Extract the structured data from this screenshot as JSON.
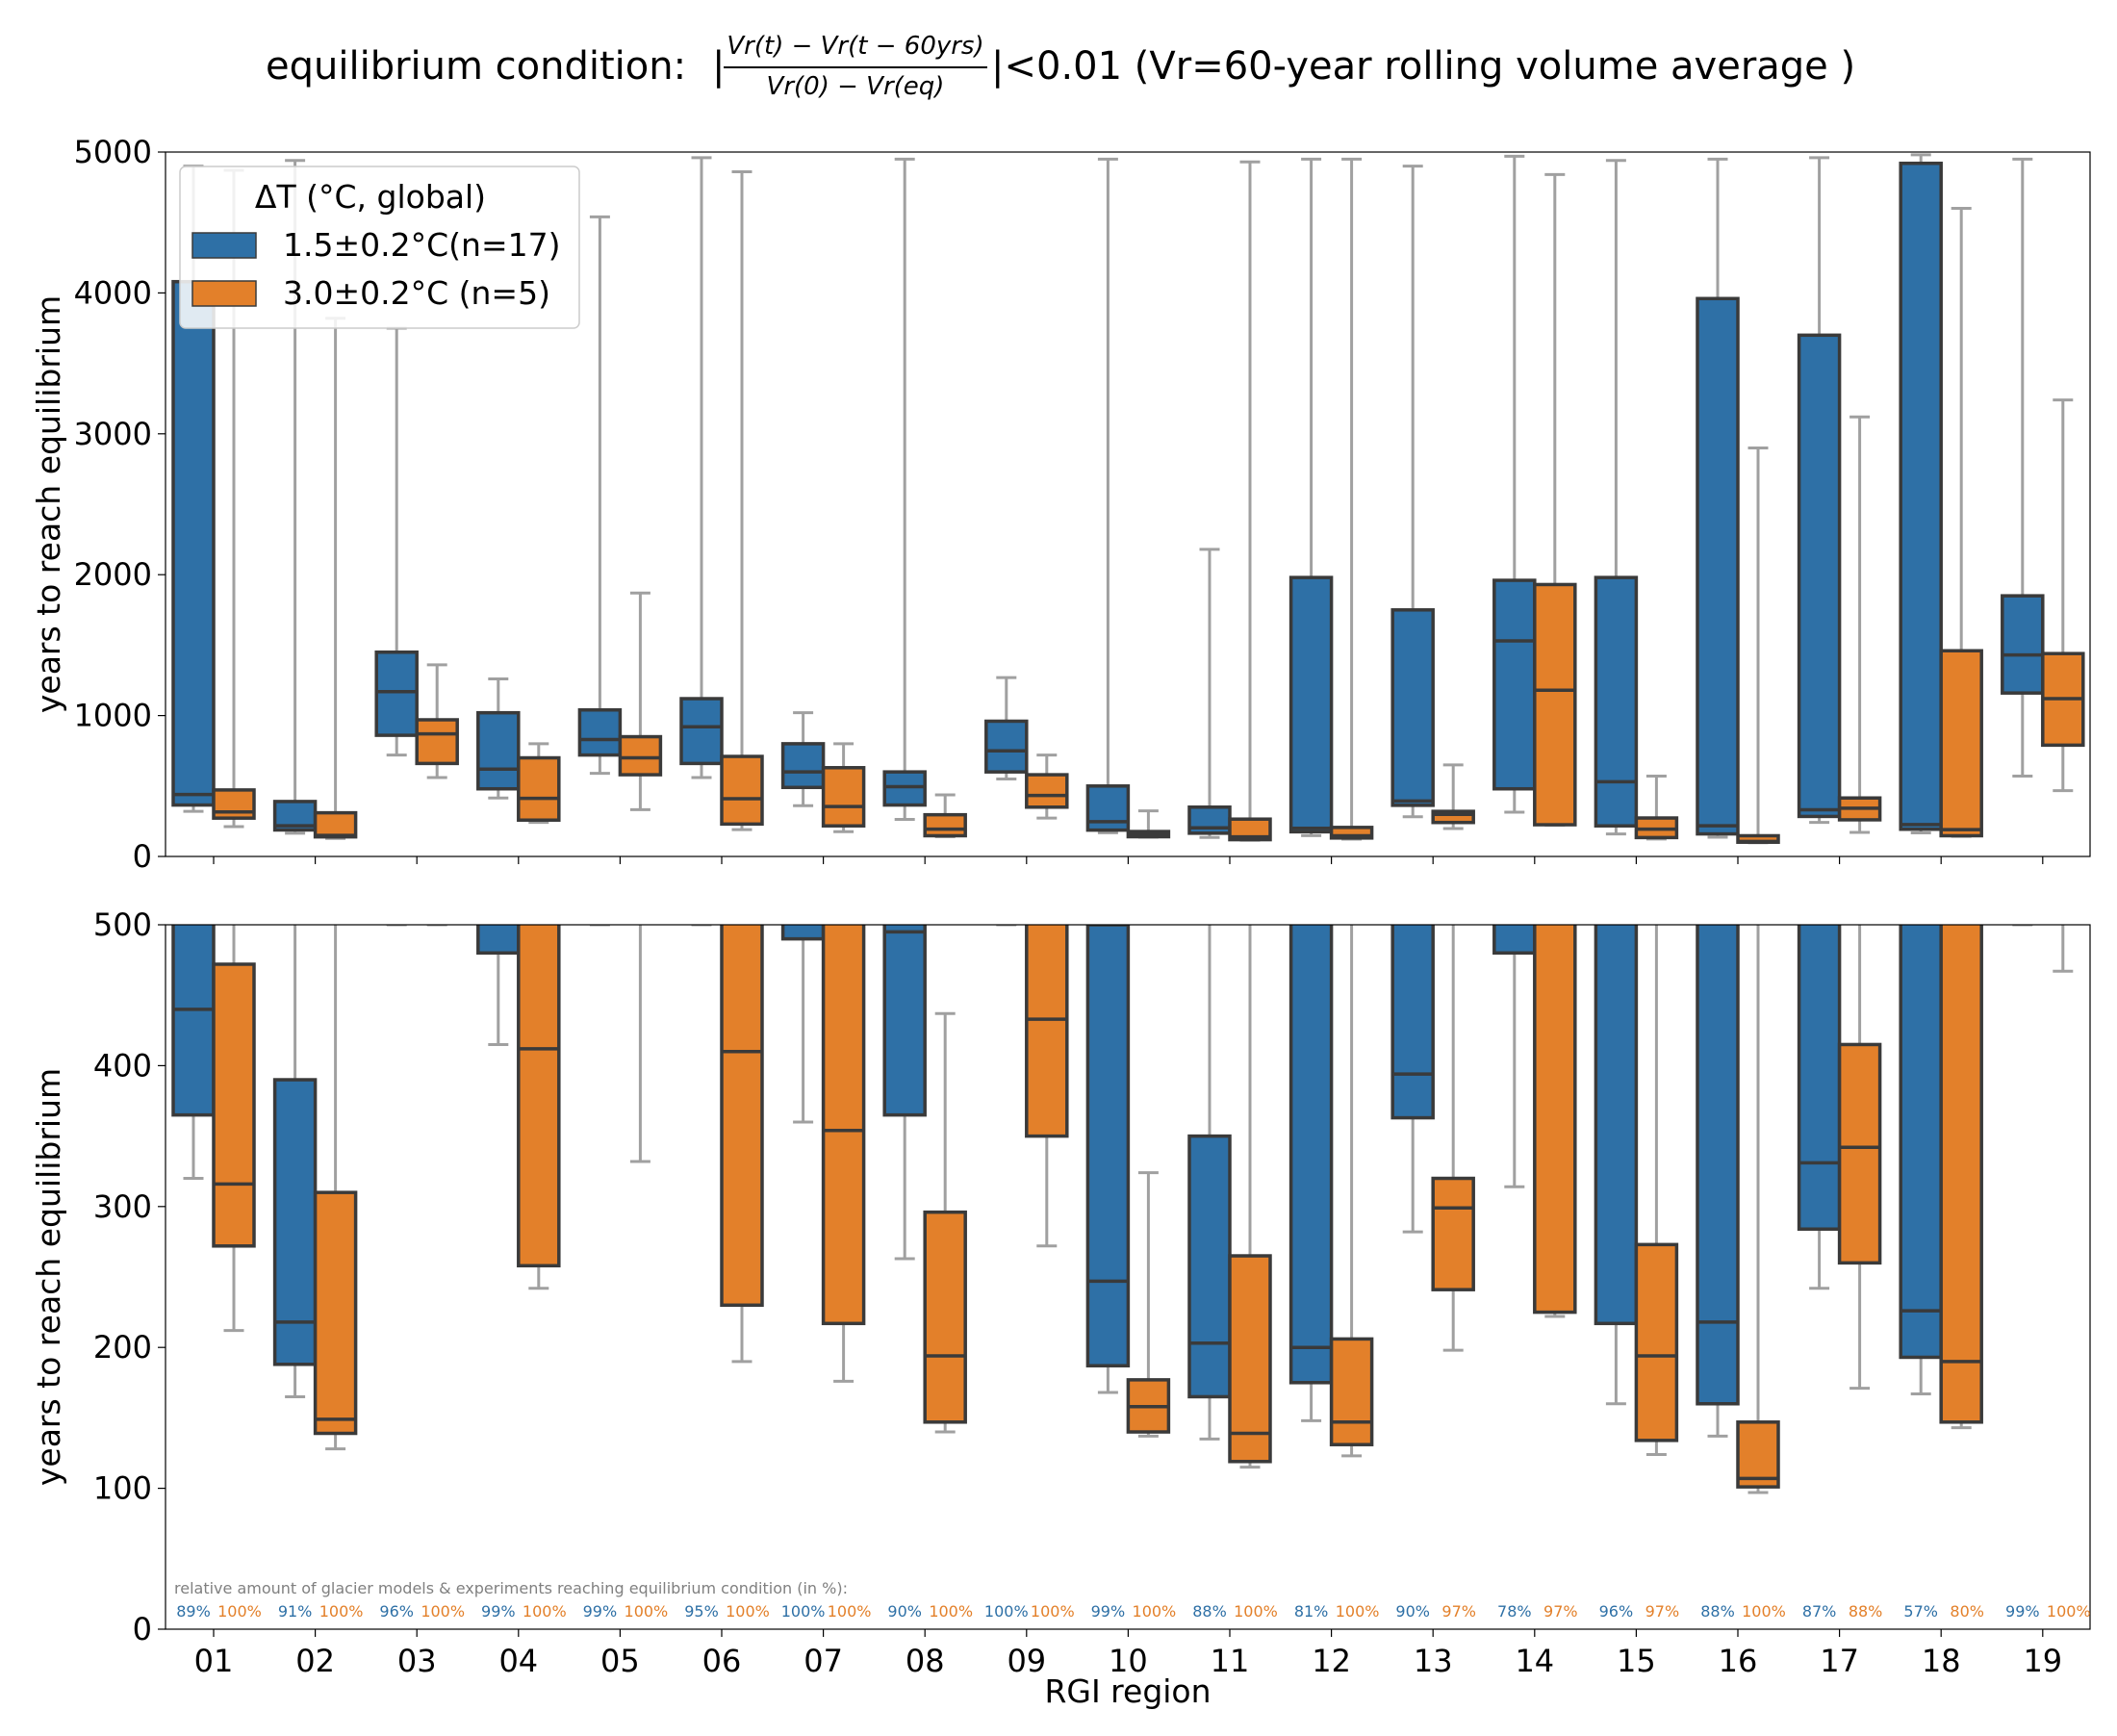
{
  "title": {
    "prefix": "equilibrium condition:",
    "numerator": "Vr(t) − Vr(t − 60yrs)",
    "denominator": "Vr(0) − Vr(eq)",
    "suffix": "<0.01 (Vr=60-year rolling volume average )"
  },
  "colors": {
    "s15": "#2e70a6",
    "s30": "#e3802a",
    "whisker": "#a0a0a0",
    "edge": "#3a3a3a"
  },
  "chart_data": [
    {
      "type": "box",
      "panel": "top",
      "ylabel": "years to reach equilibrium",
      "ylim": [
        0,
        5000
      ],
      "yticks": [
        0,
        1000,
        2000,
        3000,
        4000,
        5000
      ],
      "categories": [
        "01",
        "02",
        "03",
        "04",
        "05",
        "06",
        "07",
        "08",
        "09",
        "10",
        "11",
        "12",
        "13",
        "14",
        "15",
        "16",
        "17",
        "18",
        "19"
      ],
      "legend": {
        "title": "ΔT (°C, global)",
        "position": "upper-left"
      },
      "series": [
        {
          "name": "1.5±0.2°C(n=17)",
          "color": "#2e70a6",
          "boxes": [
            {
              "min": 320,
              "q1": 365,
              "median": 440,
              "q3": 4080,
              "max": 4900
            },
            {
              "min": 165,
              "q1": 188,
              "median": 218,
              "q3": 390,
              "max": 4940
            },
            {
              "min": 720,
              "q1": 860,
              "median": 1170,
              "q3": 1450,
              "max": 3750
            },
            {
              "min": 415,
              "q1": 480,
              "median": 620,
              "q3": 1020,
              "max": 1260
            },
            {
              "min": 590,
              "q1": 720,
              "median": 830,
              "q3": 1040,
              "max": 4540
            },
            {
              "min": 560,
              "q1": 660,
              "median": 920,
              "q3": 1120,
              "max": 4960
            },
            {
              "min": 360,
              "q1": 490,
              "median": 600,
              "q3": 800,
              "max": 1020
            },
            {
              "min": 263,
              "q1": 365,
              "median": 495,
              "q3": 600,
              "max": 4950
            },
            {
              "min": 550,
              "q1": 600,
              "median": 750,
              "q3": 960,
              "max": 1270
            },
            {
              "min": 168,
              "q1": 187,
              "median": 247,
              "q3": 500,
              "max": 4950
            },
            {
              "min": 135,
              "q1": 165,
              "median": 203,
              "q3": 350,
              "max": 2180
            },
            {
              "min": 148,
              "q1": 175,
              "median": 200,
              "q3": 1980,
              "max": 4950
            },
            {
              "min": 282,
              "q1": 363,
              "median": 394,
              "q3": 1750,
              "max": 4900
            },
            {
              "min": 314,
              "q1": 480,
              "median": 1530,
              "q3": 1960,
              "max": 4970
            },
            {
              "min": 160,
              "q1": 217,
              "median": 530,
              "q3": 1980,
              "max": 4940
            },
            {
              "min": 137,
              "q1": 160,
              "median": 218,
              "q3": 3960,
              "max": 4950
            },
            {
              "min": 242,
              "q1": 284,
              "median": 331,
              "q3": 3700,
              "max": 4960
            },
            {
              "min": 167,
              "q1": 193,
              "median": 226,
              "q3": 4920,
              "max": 4980
            },
            {
              "min": 570,
              "q1": 1160,
              "median": 1430,
              "q3": 1850,
              "max": 4950
            }
          ]
        },
        {
          "name": "3.0±0.2°C (n=5)",
          "color": "#e3802a",
          "boxes": [
            {
              "min": 212,
              "q1": 272,
              "median": 316,
              "q3": 472,
              "max": 4870
            },
            {
              "min": 128,
              "q1": 139,
              "median": 149,
              "q3": 310,
              "max": 3820
            },
            {
              "min": 560,
              "q1": 660,
              "median": 870,
              "q3": 970,
              "max": 1360
            },
            {
              "min": 242,
              "q1": 258,
              "median": 412,
              "q3": 700,
              "max": 800
            },
            {
              "min": 332,
              "q1": 580,
              "median": 700,
              "q3": 850,
              "max": 1870
            },
            {
              "min": 190,
              "q1": 230,
              "median": 410,
              "q3": 710,
              "max": 4860
            },
            {
              "min": 176,
              "q1": 217,
              "median": 354,
              "q3": 630,
              "max": 800
            },
            {
              "min": 140,
              "q1": 147,
              "median": 194,
              "q3": 296,
              "max": 437
            },
            {
              "min": 272,
              "q1": 350,
              "median": 433,
              "q3": 580,
              "max": 720
            },
            {
              "min": 137,
              "q1": 140,
              "median": 158,
              "q3": 177,
              "max": 324
            },
            {
              "min": 115,
              "q1": 119,
              "median": 139,
              "q3": 265,
              "max": 4930
            },
            {
              "min": 123,
              "q1": 131,
              "median": 147,
              "q3": 206,
              "max": 4950
            },
            {
              "min": 198,
              "q1": 241,
              "median": 299,
              "q3": 320,
              "max": 650
            },
            {
              "min": 222,
              "q1": 225,
              "median": 1180,
              "q3": 1930,
              "max": 4840
            },
            {
              "min": 124,
              "q1": 134,
              "median": 194,
              "q3": 273,
              "max": 570
            },
            {
              "min": 97,
              "q1": 101,
              "median": 107,
              "q3": 147,
              "max": 2900
            },
            {
              "min": 171,
              "q1": 260,
              "median": 342,
              "q3": 415,
              "max": 3120
            },
            {
              "min": 143,
              "q1": 147,
              "median": 190,
              "q3": 1460,
              "max": 4600
            },
            {
              "min": 467,
              "q1": 790,
              "median": 1120,
              "q3": 1440,
              "max": 3240
            }
          ]
        }
      ]
    },
    {
      "type": "box",
      "panel": "bottom",
      "xlabel": "RGI region",
      "ylabel": "years to reach equilibrium",
      "ylim": [
        0,
        500
      ],
      "yticks": [
        0,
        100,
        200,
        300,
        400,
        500
      ],
      "same_data_as": "top",
      "annotation": {
        "caption": "relative amount of glacier models & experiments reaching equilibrium condition (in %):",
        "s15": [
          "89%",
          "91%",
          "96%",
          "99%",
          "99%",
          "95%",
          "100%",
          "90%",
          "100%",
          "99%",
          "88%",
          "81%",
          "90%",
          "78%",
          "96%",
          "88%",
          "87%",
          "57%",
          "99%"
        ],
        "s30": [
          "100%",
          "100%",
          "100%",
          "100%",
          "100%",
          "100%",
          "100%",
          "100%",
          "100%",
          "100%",
          "100%",
          "100%",
          "97%",
          "97%",
          "97%",
          "100%",
          "88%",
          "80%",
          "100%"
        ]
      }
    }
  ]
}
